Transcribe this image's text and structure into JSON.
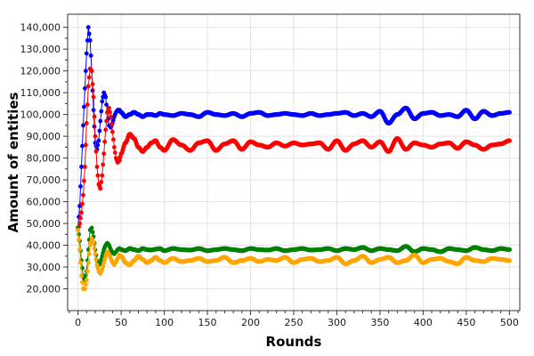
{
  "chart_data": {
    "type": "scatter",
    "xlabel": "Rounds",
    "ylabel": "Amount of entities",
    "xlim": [
      -12,
      512
    ],
    "ylim": [
      10000,
      146000
    ],
    "x_ticks": [
      0,
      50,
      100,
      150,
      200,
      250,
      300,
      350,
      400,
      450,
      500
    ],
    "x_tick_labels": [
      "0",
      "50",
      "100",
      "150",
      "200",
      "250",
      "300",
      "350",
      "400",
      "450",
      "500"
    ],
    "y_ticks": [
      20000,
      30000,
      40000,
      50000,
      60000,
      70000,
      80000,
      90000,
      100000,
      110000,
      120000,
      130000,
      140000
    ],
    "y_tick_labels": [
      "20,000",
      "30,000",
      "40,000",
      "50,000",
      "60,000",
      "70,000",
      "80,000",
      "90,000",
      "100,000",
      "110,000",
      "120,000",
      "130,000",
      "140,000"
    ],
    "grid": true,
    "legend": "none",
    "series": [
      {
        "color": "#0000ff",
        "x": [
          0,
          2,
          4,
          6,
          8,
          10,
          12,
          14,
          16,
          18,
          20,
          22,
          24,
          26,
          28,
          30,
          32,
          34,
          36,
          38,
          40,
          42,
          44,
          46,
          48,
          50,
          55,
          60,
          65,
          70,
          75,
          80,
          85,
          90,
          95,
          100,
          110,
          120,
          130,
          140,
          150,
          160,
          170,
          180,
          190,
          200,
          210,
          220,
          230,
          240,
          250,
          260,
          270,
          280,
          290,
          300,
          310,
          320,
          330,
          340,
          350,
          360,
          370,
          380,
          390,
          400,
          410,
          420,
          430,
          440,
          450,
          460,
          470,
          480,
          490,
          500
        ],
        "y": [
          48000,
          58000,
          76000,
          95000,
          112000,
          128000,
          140000,
          134000,
          120000,
          102000,
          87000,
          84000,
          88000,
          97000,
          106000,
          110000,
          108000,
          101000,
          95000,
          94000,
          96000,
          99000,
          101000,
          102000,
          102000,
          101000,
          99000,
          100000,
          101000,
          100000,
          99000,
          100000,
          100000,
          99500,
          100500,
          100000,
          99500,
          100500,
          100000,
          99000,
          101000,
          100000,
          99500,
          100500,
          99000,
          100500,
          101000,
          99500,
          100000,
          100500,
          100000,
          99500,
          100500,
          99500,
          100000,
          100500,
          101000,
          99500,
          100500,
          99000,
          101500,
          96000,
          100000,
          103000,
          98000,
          100500,
          101000,
          99500,
          100000,
          99000,
          102000,
          98000,
          101500,
          99500,
          100500,
          101000
        ]
      },
      {
        "color": "#ff0000",
        "x": [
          0,
          2,
          4,
          6,
          8,
          10,
          12,
          14,
          16,
          18,
          20,
          22,
          24,
          26,
          28,
          30,
          32,
          34,
          36,
          38,
          40,
          42,
          44,
          46,
          48,
          50,
          55,
          60,
          65,
          70,
          75,
          80,
          85,
          90,
          95,
          100,
          110,
          120,
          130,
          140,
          150,
          160,
          170,
          180,
          190,
          200,
          210,
          220,
          230,
          240,
          250,
          260,
          270,
          280,
          290,
          300,
          310,
          320,
          330,
          340,
          350,
          360,
          370,
          380,
          390,
          400,
          410,
          420,
          430,
          440,
          450,
          460,
          470,
          480,
          490,
          500
        ],
        "y": [
          47000,
          50000,
          55000,
          63000,
          76000,
          96000,
          113000,
          121000,
          120000,
          108000,
          90000,
          76000,
          68000,
          66000,
          72000,
          82000,
          93000,
          101000,
          103000,
          99000,
          92000,
          85000,
          80000,
          78000,
          79000,
          82000,
          87000,
          91000,
          89000,
          85000,
          83000,
          85000,
          87000,
          88000,
          85000,
          83500,
          88500,
          86000,
          83500,
          87000,
          88000,
          83500,
          86500,
          88000,
          84000,
          87500,
          86000,
          85000,
          87000,
          85500,
          87000,
          86000,
          86500,
          87000,
          84000,
          88000,
          83500,
          86500,
          88000,
          85000,
          87500,
          83000,
          89000,
          84000,
          87000,
          86000,
          85000,
          86500,
          87000,
          84500,
          87500,
          86000,
          84000,
          86000,
          86500,
          88000
        ]
      },
      {
        "color": "#008000",
        "x": [
          0,
          2,
          4,
          6,
          8,
          10,
          12,
          14,
          16,
          18,
          20,
          22,
          24,
          26,
          28,
          30,
          32,
          34,
          36,
          38,
          40,
          42,
          44,
          46,
          48,
          50,
          55,
          60,
          65,
          70,
          75,
          80,
          85,
          90,
          95,
          100,
          110,
          120,
          130,
          140,
          150,
          160,
          170,
          180,
          190,
          200,
          210,
          220,
          230,
          240,
          250,
          260,
          270,
          280,
          290,
          300,
          310,
          320,
          330,
          340,
          350,
          360,
          370,
          380,
          390,
          400,
          410,
          420,
          430,
          440,
          450,
          460,
          470,
          480,
          490,
          500
        ],
        "y": [
          48000,
          42000,
          33000,
          26000,
          24000,
          28000,
          38000,
          47000,
          48000,
          44000,
          38000,
          33000,
          31000,
          32000,
          35000,
          38000,
          40000,
          41000,
          40000,
          38000,
          36500,
          36000,
          37000,
          38000,
          38500,
          38000,
          37500,
          38500,
          38000,
          37500,
          38500,
          38000,
          37800,
          38200,
          38500,
          37500,
          38500,
          38000,
          37800,
          38500,
          37500,
          38000,
          38500,
          38000,
          37500,
          38500,
          38000,
          37800,
          38500,
          37500,
          38000,
          38500,
          37800,
          38000,
          38500,
          37500,
          38500,
          38000,
          39000,
          37500,
          38500,
          38000,
          37500,
          39500,
          37000,
          38500,
          38000,
          37000,
          38500,
          38000,
          37500,
          39000,
          38000,
          37500,
          38500,
          38000
        ]
      },
      {
        "color": "#ffa500",
        "x": [
          0,
          2,
          4,
          6,
          8,
          10,
          12,
          14,
          16,
          18,
          20,
          22,
          24,
          26,
          28,
          30,
          32,
          34,
          36,
          38,
          40,
          42,
          44,
          46,
          48,
          50,
          55,
          60,
          65,
          70,
          75,
          80,
          85,
          90,
          95,
          100,
          110,
          120,
          130,
          140,
          150,
          160,
          170,
          180,
          190,
          200,
          210,
          220,
          230,
          240,
          250,
          260,
          270,
          280,
          290,
          300,
          310,
          320,
          330,
          340,
          350,
          360,
          370,
          380,
          390,
          400,
          410,
          420,
          430,
          440,
          450,
          460,
          470,
          480,
          490,
          500
        ],
        "y": [
          47000,
          38000,
          26000,
          20000,
          20000,
          24000,
          32000,
          40000,
          43000,
          41000,
          36000,
          31000,
          28000,
          27000,
          29000,
          32000,
          35000,
          37000,
          36000,
          34000,
          32000,
          31000,
          32500,
          34000,
          35500,
          35000,
          32000,
          31000,
          33000,
          35000,
          33500,
          32000,
          33000,
          34500,
          33000,
          32000,
          34000,
          32500,
          33000,
          34000,
          32500,
          33000,
          34500,
          32000,
          33000,
          34000,
          32500,
          33500,
          33000,
          34500,
          32000,
          33500,
          34000,
          32500,
          33000,
          34500,
          31500,
          33000,
          35000,
          32000,
          33500,
          34500,
          32000,
          33000,
          35500,
          32000,
          33500,
          34000,
          32500,
          31500,
          34500,
          33000,
          32500,
          34000,
          33500,
          33000
        ]
      }
    ]
  }
}
